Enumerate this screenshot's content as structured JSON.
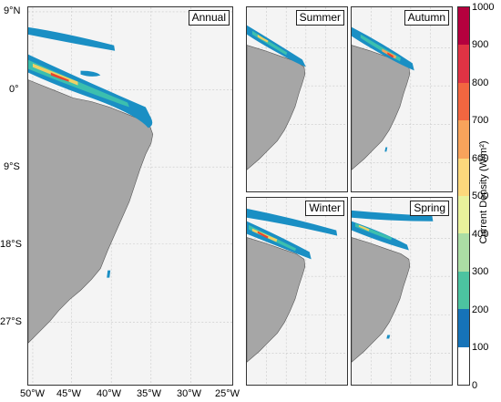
{
  "panels": {
    "annual": "Annual",
    "summer": "Summer",
    "autumn": "Autumn",
    "winter": "Winter",
    "spring": "Spring"
  },
  "axes": {
    "lat_ticks": [
      "9°N",
      "0°",
      "9°S",
      "18°S",
      "27°S"
    ],
    "lon_ticks": [
      "50°W",
      "45°W",
      "40°W",
      "35°W",
      "30°W",
      "25°W"
    ]
  },
  "colorbar": {
    "title": "Current Density (W/m²)",
    "ticks": [
      "1000",
      "900",
      "800",
      "700",
      "600",
      "500",
      "400",
      "300",
      "200",
      "100",
      "0"
    ],
    "colors": [
      "#b5003e",
      "#e03344",
      "#f26640",
      "#f8a35b",
      "#fcd87c",
      "#e8f29c",
      "#abdda4",
      "#4cc3a0",
      "#1aa7b9",
      "#1673b8",
      "#ffffff"
    ]
  },
  "colors": {
    "land": "#a6a6a6",
    "ocean": "#f4f4f4",
    "current_low": "#1a8fc4",
    "current_mid": "#3cbfae",
    "current_high": "#f0d066",
    "current_peak": "#e8442d"
  }
}
